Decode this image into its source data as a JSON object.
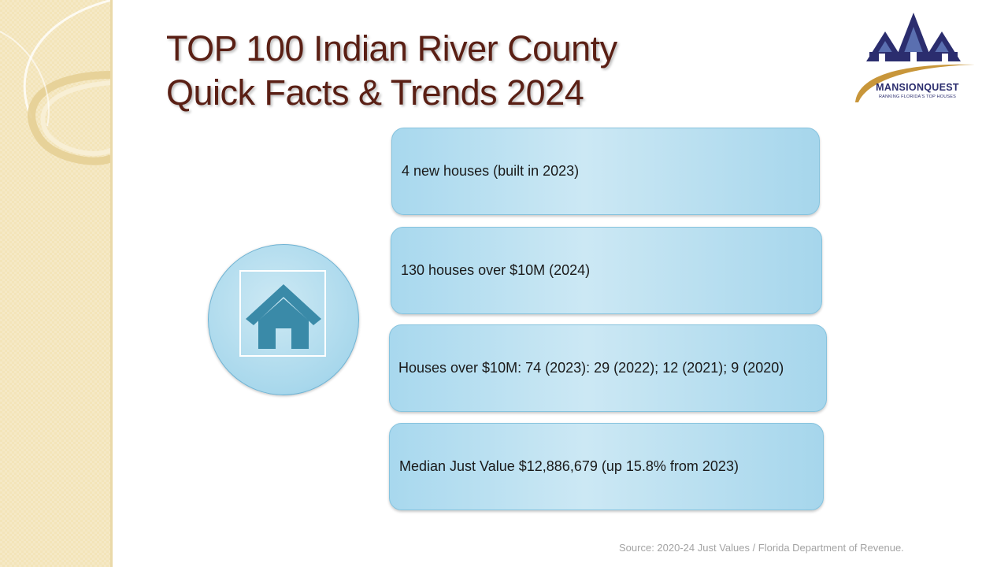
{
  "slide": {
    "title_line1": "TOP 100 Indian River County",
    "title_line2": "Quick Facts & Trends 2024"
  },
  "logo": {
    "name": "MANSIONQUEST",
    "tagline": "RANKING FLORIDA'S TOP HOUSES",
    "colors": {
      "navy": "#2b2d6e",
      "gold": "#c8963a"
    }
  },
  "facts": [
    "4 new houses (built in 2023)",
    "130 houses over $10M (2024)",
    "Houses over $10M: 74 (2023): 29 (2022); 12 (2021); 9 (2020)",
    "Median Just Value $12,886,679 (up 15.8% from 2023)"
  ],
  "icon": {
    "main": "house-icon",
    "color": "#3a8aa8"
  },
  "source": "Source: 2020-24 Just Values / Florida Department of Revenue."
}
